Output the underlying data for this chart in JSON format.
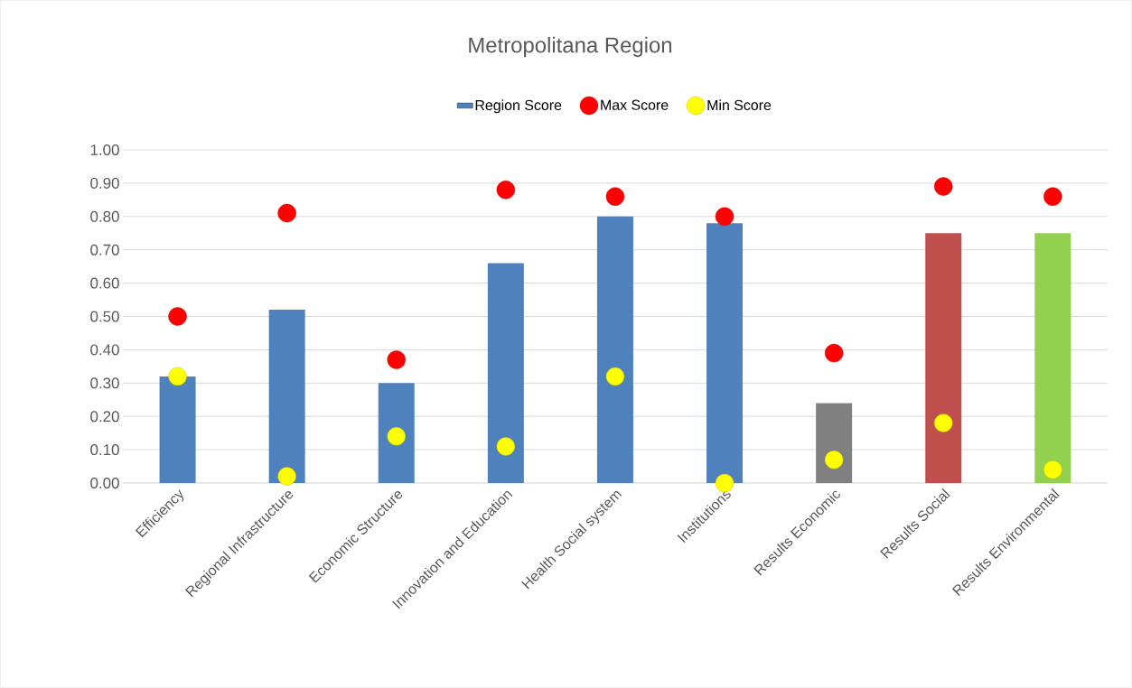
{
  "chart_data": {
    "type": "bar",
    "title": "Metropolitana Region",
    "categories": [
      "Efficiency",
      "Regional Infrastructure",
      "Economic Structure",
      "Innovation and Education",
      "Health Social system",
      "Institutions",
      "Results Economic",
      "Results Social",
      "Results Environmental"
    ],
    "series": [
      {
        "name": "Region Score",
        "color": "#4f81bd",
        "colors": [
          "#4f81bd",
          "#4f81bd",
          "#4f81bd",
          "#4f81bd",
          "#4f81bd",
          "#4f81bd",
          "#808080",
          "#c0504d",
          "#92d050"
        ],
        "values": [
          0.32,
          0.52,
          0.3,
          0.66,
          0.8,
          0.78,
          0.24,
          0.75,
          0.75
        ]
      },
      {
        "name": "Max Score",
        "type": "scatter",
        "color": "#ff0000",
        "values": [
          0.5,
          0.81,
          0.37,
          0.88,
          0.86,
          0.8,
          0.39,
          0.89,
          0.86
        ]
      },
      {
        "name": "Min Score",
        "type": "scatter",
        "color": "#ffff00",
        "values": [
          0.32,
          0.02,
          0.14,
          0.11,
          0.32,
          0.0,
          0.07,
          0.18,
          0.04
        ]
      }
    ],
    "ylim": [
      0,
      1
    ],
    "yticks": [
      {
        "value": 0,
        "label": "0.00"
      },
      {
        "value": 0.1,
        "label": "0.10"
      },
      {
        "value": 0.2,
        "label": "0.20"
      },
      {
        "value": 0.3,
        "label": "0.30"
      },
      {
        "value": 0.4,
        "label": "0.40"
      },
      {
        "value": 0.5,
        "label": "0.50"
      },
      {
        "value": 0.6,
        "label": "0.60"
      },
      {
        "value": 0.7,
        "label": "0.70"
      },
      {
        "value": 0.8,
        "label": "0.80"
      },
      {
        "value": 0.9,
        "label": "0.90"
      },
      {
        "value": 1,
        "label": "1.00"
      }
    ],
    "grid": "y",
    "legend": "top",
    "marker": "circle"
  }
}
